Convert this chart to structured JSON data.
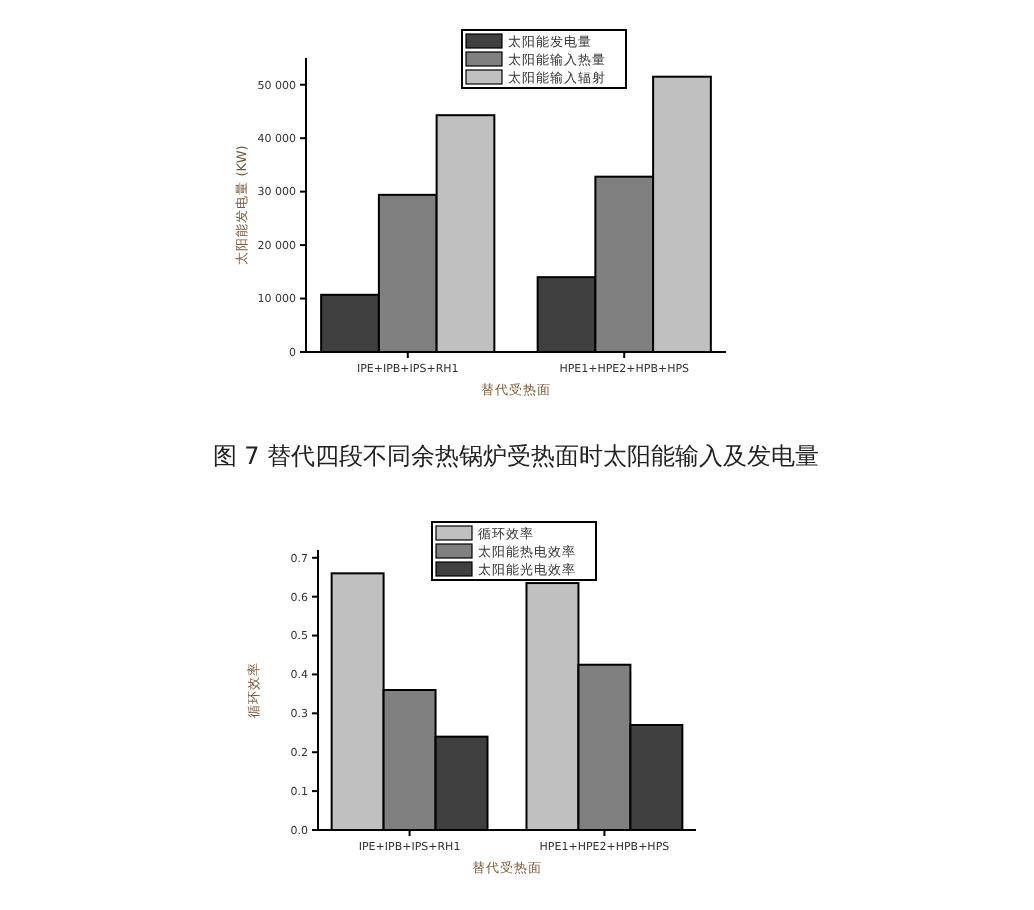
{
  "chart_data": [
    {
      "type": "bar",
      "xlabel": "替代受热面",
      "ylabel": "太阳能发电量 (KW)",
      "categories": [
        "IPE+IPB+IPS+RH1",
        "HPE1+HPE2+HPB+HPS"
      ],
      "series": [
        {
          "name": "太阳能发电量",
          "color": "#404040",
          "values": [
            10700,
            14000
          ]
        },
        {
          "name": "太阳能输入热量",
          "color": "#808080",
          "values": [
            29400,
            32800
          ]
        },
        {
          "name": "太阳能输入辐射",
          "color": "#c0c0c0",
          "values": [
            44300,
            51500
          ]
        }
      ],
      "ylim": [
        0,
        55000
      ],
      "yticks": [
        0,
        {
          "value": 10000,
          "label": "10 000"
        },
        {
          "value": 20000,
          "label": "20 000"
        },
        {
          "value": 30000,
          "label": "30 000"
        },
        {
          "value": 40000,
          "label": "40 000"
        },
        {
          "value": 50000,
          "label": "50 000"
        }
      ],
      "legend": "top right",
      "grid": false,
      "annotations": [
        "图 7  替代四段不同余热锅炉受热面时太阳能输入及发电量"
      ]
    },
    {
      "type": "bar",
      "xlabel": "替代受热面",
      "ylabel": "循环效率",
      "categories": [
        "IPE+IPB+IPS+RH1",
        "HPE1+HPE2+HPB+HPS"
      ],
      "series": [
        {
          "name": "循环效率",
          "color": "#c0c0c0",
          "values": [
            0.66,
            0.635
          ]
        },
        {
          "name": "太阳能热电效率",
          "color": "#808080",
          "values": [
            0.36,
            0.425
          ]
        },
        {
          "name": "太阳能光电效率",
          "color": "#404040",
          "values": [
            0.24,
            0.27
          ]
        }
      ],
      "ylim": [
        0,
        0.72
      ],
      "yticks": [
        {
          "value": 0,
          "label": "0.0"
        },
        0.1,
        0.2,
        0.3,
        0.4,
        0.5,
        0.6,
        0.7
      ],
      "legend": "top right",
      "grid": false
    }
  ]
}
